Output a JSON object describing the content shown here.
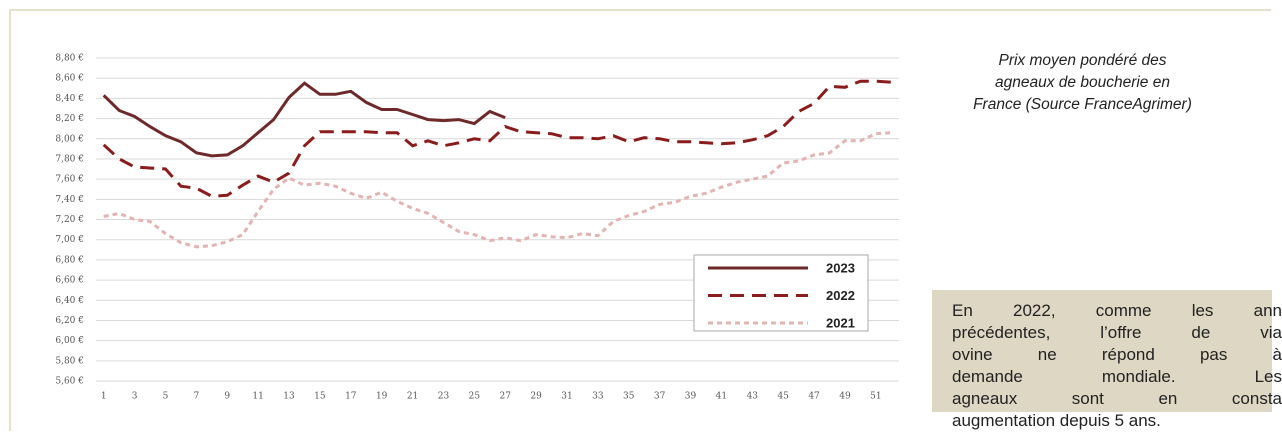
{
  "chart_data": {
    "type": "line",
    "x": [
      1,
      2,
      3,
      4,
      5,
      6,
      7,
      8,
      9,
      10,
      11,
      12,
      13,
      14,
      15,
      16,
      17,
      18,
      19,
      20,
      21,
      22,
      23,
      24,
      25,
      26,
      27,
      28,
      29,
      30,
      31,
      32,
      33,
      34,
      35,
      36,
      37,
      38,
      39,
      40,
      41,
      42,
      43,
      44,
      45,
      46,
      47,
      48,
      49,
      50,
      51,
      52
    ],
    "xlim": [
      0.5,
      52.5
    ],
    "xticks": [
      1,
      3,
      5,
      7,
      9,
      11,
      13,
      15,
      17,
      19,
      21,
      23,
      25,
      27,
      29,
      31,
      33,
      35,
      37,
      39,
      41,
      43,
      45,
      47,
      49,
      51
    ],
    "ylim": [
      5.6,
      8.8
    ],
    "yticks": [
      {
        "value": 5.6,
        "label": "5,60 €"
      },
      {
        "value": 5.8,
        "label": "5,80 €"
      },
      {
        "value": 6.0,
        "label": "6,00 €"
      },
      {
        "value": 6.2,
        "label": "6,20 €"
      },
      {
        "value": 6.4,
        "label": "6,40 €"
      },
      {
        "value": 6.6,
        "label": "6,60 €"
      },
      {
        "value": 6.8,
        "label": "6,80 €"
      },
      {
        "value": 7.0,
        "label": "7,00 €"
      },
      {
        "value": 7.2,
        "label": "7,20 €"
      },
      {
        "value": 7.4,
        "label": "7,40 €"
      },
      {
        "value": 7.6,
        "label": "7,60 €"
      },
      {
        "value": 7.8,
        "label": "7,80 €"
      },
      {
        "value": 8.0,
        "label": "8,00 €"
      },
      {
        "value": 8.2,
        "label": "8,20 €"
      },
      {
        "value": 8.4,
        "label": "8,40 €"
      },
      {
        "value": 8.6,
        "label": "8,60 €"
      },
      {
        "value": 8.8,
        "label": "8,80 €"
      }
    ],
    "grid": true,
    "series": [
      {
        "name": "2023",
        "color": "#6e2a2a",
        "dash": "none",
        "values": [
          8.43,
          8.28,
          8.22,
          8.12,
          8.03,
          7.97,
          7.86,
          7.83,
          7.84,
          7.93,
          8.06,
          8.19,
          8.41,
          8.55,
          8.44,
          8.44,
          8.47,
          8.36,
          8.29,
          8.29,
          8.24,
          8.19,
          8.18,
          8.19,
          8.15,
          8.27,
          8.21,
          null,
          null,
          null,
          null,
          null,
          null,
          null,
          null,
          null,
          null,
          null,
          null,
          null,
          null,
          null,
          null,
          null,
          null,
          null,
          null,
          null,
          null,
          null,
          null,
          null
        ]
      },
      {
        "name": "2022",
        "color": "#8b1c1c",
        "dash": "14 8",
        "values": [
          7.94,
          7.8,
          7.72,
          7.71,
          7.7,
          7.53,
          7.51,
          7.43,
          7.44,
          7.54,
          7.63,
          7.57,
          7.66,
          7.93,
          8.07,
          8.07,
          8.07,
          8.07,
          8.06,
          8.06,
          7.93,
          7.98,
          7.93,
          7.96,
          8.0,
          7.98,
          8.12,
          8.07,
          8.06,
          8.05,
          8.01,
          8.01,
          8.0,
          8.03,
          7.97,
          8.01,
          8.0,
          7.97,
          7.97,
          7.96,
          7.95,
          7.96,
          7.99,
          8.03,
          8.12,
          8.27,
          8.35,
          8.52,
          8.51,
          8.57,
          8.57,
          8.56
        ]
      },
      {
        "name": "2021",
        "color": "#e2b4b2",
        "dash": "5 4",
        "values": [
          7.23,
          7.26,
          7.2,
          7.18,
          7.06,
          6.97,
          6.93,
          6.94,
          6.98,
          7.05,
          7.28,
          7.5,
          7.61,
          7.54,
          7.56,
          7.53,
          7.46,
          7.41,
          7.47,
          7.38,
          7.31,
          7.26,
          7.17,
          7.08,
          7.05,
          6.99,
          7.02,
          6.99,
          7.05,
          7.03,
          7.02,
          7.06,
          7.04,
          7.18,
          7.24,
          7.28,
          7.35,
          7.37,
          7.43,
          7.46,
          7.52,
          7.57,
          7.6,
          7.63,
          7.76,
          7.78,
          7.84,
          7.86,
          7.98,
          7.98,
          8.05,
          8.06
        ]
      }
    ]
  },
  "caption": [
    "Prix moyen pondéré des",
    "agneaux de boucherie en",
    "France (Source FranceAgrimer)"
  ],
  "text_box": [
    "En 2022, comme les ann",
    "précédentes, l’offre de via",
    "ovine ne répond pas à",
    "demande mondiale. Les",
    "agneaux sont en consta",
    "augmentation depuis 5 ans."
  ]
}
